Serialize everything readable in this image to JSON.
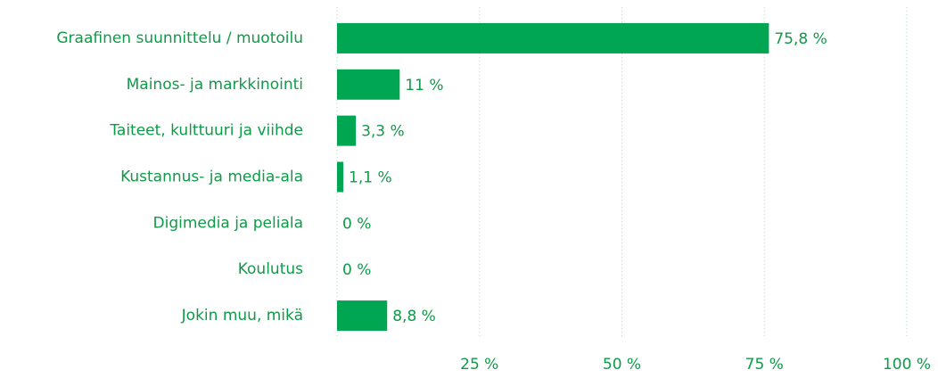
{
  "chart_data": {
    "type": "bar",
    "orientation": "horizontal",
    "categories": [
      "Graafinen suunnittelu / muotoilu",
      "Mainos- ja markkinointi",
      "Taiteet, kulttuuri ja viihde",
      "Kustannus- ja media-ala",
      "Digimedia ja peliala",
      "Koulutus",
      "Jokin muu, mikä"
    ],
    "values": [
      75.8,
      11,
      3.3,
      1.1,
      0,
      0,
      8.8
    ],
    "value_labels": [
      "75,8 %",
      "11 %",
      "3,3 %",
      "1,1 %",
      "0 %",
      "0 %",
      "8,8 %"
    ],
    "color": "#00a651",
    "xlim": [
      0,
      100
    ],
    "xticks": [
      {
        "value": 25,
        "label": "25 %"
      },
      {
        "value": 50,
        "label": "50 %"
      },
      {
        "value": 75,
        "label": "75 %"
      },
      {
        "value": 100,
        "label": "100 %"
      }
    ],
    "grid": true
  }
}
